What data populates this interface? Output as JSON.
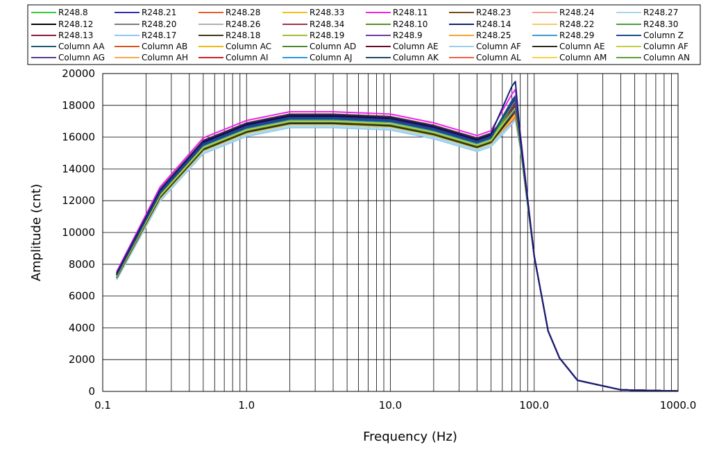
{
  "chart_data": {
    "type": "line",
    "title": "",
    "xlabel": "Frequency (Hz)",
    "ylabel": "Amplitude (cnt)",
    "xscale": "log",
    "xlim": [
      0.1,
      1000
    ],
    "ylim": [
      0,
      20000
    ],
    "xticks": [
      0.1,
      1,
      10,
      100,
      1000
    ],
    "xtick_labels": [
      "0.1",
      "1.0",
      "10.0",
      "100.0",
      "1000.0"
    ],
    "yticks": [
      0,
      2000,
      4000,
      6000,
      8000,
      10000,
      12000,
      14000,
      16000,
      18000,
      20000
    ],
    "ytick_labels": [
      "0",
      "2000",
      "4000",
      "6000",
      "8000",
      "10000",
      "12000",
      "14000",
      "16000",
      "18000",
      "20000"
    ],
    "grid": true,
    "legend_position": "top",
    "x": [
      0.125,
      0.25,
      0.5,
      1.0,
      2.0,
      4.0,
      10.0,
      20.0,
      40.0,
      50.0,
      70.0,
      74.0,
      80.0,
      100.0,
      125.0,
      150.0,
      200.0,
      400.0,
      1000.0
    ],
    "base_profile": [
      7300,
      12450,
      15500,
      16600,
      17150,
      17150,
      17000,
      16450,
      15650,
      15950,
      17800,
      18100,
      15800,
      8500,
      3800,
      2100,
      700,
      100,
      20
    ],
    "series": [
      {
        "name": "R248.8",
        "color": "#33cc33",
        "offset": 0,
        "peak": 18100
      },
      {
        "name": "R248.21",
        "color": "#2b2bbf",
        "offset": 100,
        "peak": 18400
      },
      {
        "name": "R248.28",
        "color": "#f05a28",
        "offset": 150,
        "peak": 17500
      },
      {
        "name": "R248.33",
        "color": "#f0c020",
        "offset": -50,
        "peak": 17300
      },
      {
        "name": "R248.11",
        "color": "#ee22ee",
        "offset": 450,
        "peak": 19000
      },
      {
        "name": "R248.23",
        "color": "#7a4a1a",
        "offset": 300,
        "peak": 18000
      },
      {
        "name": "R248.24",
        "color": "#f4a090",
        "offset": 50,
        "peak": 17600
      },
      {
        "name": "R248.27",
        "color": "#a8d4f0",
        "offset": -500,
        "peak": 17200
      },
      {
        "name": "R248.12",
        "color": "#000000",
        "offset": 150,
        "peak": 18300
      },
      {
        "name": "R248.20",
        "color": "#7a7a7a",
        "offset": 200,
        "peak": 18200
      },
      {
        "name": "R248.26",
        "color": "#b0b0b0",
        "offset": 0,
        "peak": 17900
      },
      {
        "name": "R248.34",
        "color": "#a0304a",
        "offset": 250,
        "peak": 18100
      },
      {
        "name": "R248.10",
        "color": "#5a8a2a",
        "offset": -100,
        "peak": 17700
      },
      {
        "name": "R248.14",
        "color": "#102070",
        "offset": 250,
        "peak": 19500
      },
      {
        "name": "R248.22",
        "color": "#f8c868",
        "offset": -150,
        "peak": 17400
      },
      {
        "name": "R248.30",
        "color": "#4c9a3c",
        "offset": 50,
        "peak": 18000
      },
      {
        "name": "R248.13",
        "color": "#8a1a3a",
        "offset": 200,
        "peak": 18200
      },
      {
        "name": "R248.17",
        "color": "#8ac8f0",
        "offset": -550,
        "peak": 17100
      },
      {
        "name": "R248.18",
        "color": "#3a3a1a",
        "offset": -300,
        "peak": 17600
      },
      {
        "name": "R248.19",
        "color": "#a0c030",
        "offset": -50,
        "peak": 17800
      },
      {
        "name": "R248.9",
        "color": "#6a3a9a",
        "offset": 100,
        "peak": 18300
      },
      {
        "name": "R248.25",
        "color": "#f8a030",
        "offset": -200,
        "peak": 17400
      },
      {
        "name": "R248.29",
        "color": "#3a9ad0",
        "offset": -100,
        "peak": 17700
      },
      {
        "name": "Column Z",
        "color": "#1a4a8a",
        "offset": 50,
        "peak": 18600
      },
      {
        "name": "Column AA",
        "color": "#1a5a6a",
        "offset": -150,
        "peak": 17800
      },
      {
        "name": "Column AB",
        "color": "#e0501a",
        "offset": 0,
        "peak": 17500
      },
      {
        "name": "Column AC",
        "color": "#f0b810",
        "offset": -100,
        "peak": 17300
      },
      {
        "name": "Column AD",
        "color": "#4a8a2a",
        "offset": -200,
        "peak": 17900
      },
      {
        "name": "Column AE",
        "color": "#6a0a2a",
        "offset": 100,
        "peak": 18000
      },
      {
        "name": "Column AF",
        "color": "#98d0e8",
        "offset": -400,
        "peak": 17300
      },
      {
        "name": "Column AE",
        "color": "#2a2a1a",
        "offset": -250,
        "peak": 17700
      },
      {
        "name": "Column AF",
        "color": "#c0d040",
        "offset": -150,
        "peak": 17900
      },
      {
        "name": "Column AG",
        "color": "#5a3a8a",
        "offset": 50,
        "peak": 18200
      },
      {
        "name": "Column AH",
        "color": "#f8a850",
        "offset": -300,
        "peak": 17400
      },
      {
        "name": "Column AI",
        "color": "#d02020",
        "offset": 150,
        "peak": 17600
      },
      {
        "name": "Column AJ",
        "color": "#2a98e0",
        "offset": -50,
        "peak": 17800
      },
      {
        "name": "Column AK",
        "color": "#1a4a6a",
        "offset": 0,
        "peak": 18500
      },
      {
        "name": "Column AL",
        "color": "#f06040",
        "offset": -250,
        "peak": 17300
      },
      {
        "name": "Column AM",
        "color": "#f8d040",
        "offset": -350,
        "peak": 17500
      },
      {
        "name": "Column AN",
        "color": "#5aa03a",
        "offset": 0,
        "peak": 18300
      }
    ]
  }
}
